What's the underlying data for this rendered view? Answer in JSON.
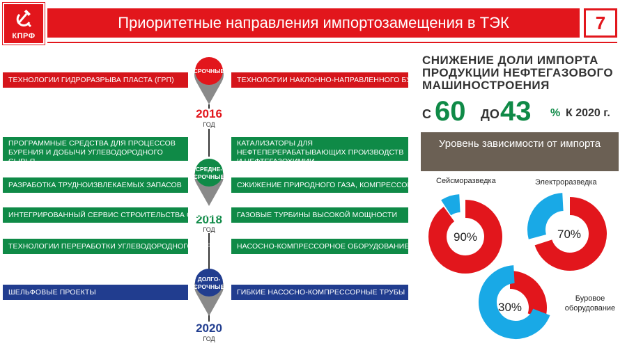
{
  "header": {
    "logo_text": "КПРФ",
    "title": "Приоритетные направления импортозамещения в ТЭК",
    "page_number": "7"
  },
  "timeline": [
    {
      "label_line1": "СРОЧНЫЕ",
      "label_line2": "",
      "year": "2016",
      "year_sub": "ГОД",
      "color": "#e2161c"
    },
    {
      "label_line1": "СРЕДНЕ-",
      "label_line2": "СРОЧНЫЕ",
      "year": "2018",
      "year_sub": "ГОД",
      "color": "#0f8a47"
    },
    {
      "label_line1": "ДОЛГО-",
      "label_line2": "СРОЧНЫЕ",
      "year": "2020",
      "year_sub": "ГОД",
      "color": "#213d8f"
    }
  ],
  "rows": {
    "urgent_left": "Технологии гидроразрыва пласта (ГРП)",
    "urgent_right": "Технологии наклонно-направленного бурения",
    "mid_left": [
      "Программные средства для процессов бурения и добычи углеводородного сырья",
      "Разработка трудноизвлекаемых запасов",
      "Интегрированный сервис строительства скважин",
      "Технологии переработки углеводородного сырья"
    ],
    "mid_right": [
      "Катализаторы для нефтеперерабатывающих производств и нефтегазохимии",
      "Сжижение природного газа, компрессоры",
      "Газовые турбины высокой мощности",
      "Насосно-компрессорное оборудование"
    ],
    "long_left": "Шельфовые проекты",
    "long_right": "Гибкие насосно-компрессорные трубы"
  },
  "reduction": {
    "title": "СНИЖЕНИЕ ДОЛИ ИМПОРТА ПРОДУКЦИИ НЕФТЕГАЗОВОГО МАШИНОСТРОЕНИЯ",
    "from_word": "С",
    "from_value": "60",
    "to_word": "ДО",
    "to_value": "43",
    "percent_sign": "%",
    "by_year": "К 2020 г."
  },
  "dependency": {
    "title": "Уровень зависимости от импорта",
    "items": [
      {
        "name": "Сейсморазведка",
        "percent_label": "90%",
        "value": 90
      },
      {
        "name": "Электроразведка",
        "percent_label": "70%",
        "value": 70
      },
      {
        "name": "Буровое оборудование",
        "percent_label": "30%",
        "value": 30
      }
    ],
    "colors": {
      "dependent": "#e2161c",
      "independent": "#19a9e6"
    }
  }
}
